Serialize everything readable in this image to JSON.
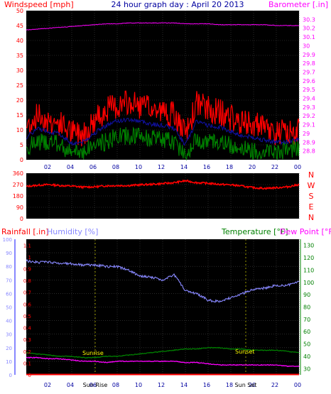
{
  "header": {
    "left_title": "Windspeed [mph]",
    "center_title": "24 hour graph day : April 20 2013",
    "right_title": "Barometer [.in]"
  },
  "colors": {
    "plot_bg": "#000000",
    "grid": "#444444",
    "wind_gust": "#ff0000",
    "wind_avg": "#008000",
    "wind_line": "#1010a0",
    "barometer": "#ff00ff",
    "direction": "#ff0000",
    "humidity": "#8888ff",
    "temperature": "#008000",
    "dewpoint": "#ff00ff",
    "rainfall": "#ff0000",
    "title_blue": "#0000a0",
    "sun_label": "#ffff00",
    "x_tick": "#0000a0"
  },
  "x_ticks": [
    "02",
    "04",
    "06",
    "08",
    "10",
    "12",
    "14",
    "16",
    "18",
    "20",
    "22",
    "00"
  ],
  "panel_wind": {
    "left_ticks": [
      "0",
      "5",
      "10",
      "15",
      "20",
      "25",
      "30",
      "35",
      "40",
      "45",
      "50"
    ],
    "right_ticks": [
      "28.8",
      "28.9",
      "29",
      "29.1",
      "29.2",
      "29.3",
      "29.4",
      "29.5",
      "29.6",
      "29.7",
      "29.8",
      "29.9",
      "30",
      "30.1",
      "30.2",
      "30.3"
    ]
  },
  "panel_direction": {
    "left_ticks": [
      "0",
      "90",
      "180",
      "270",
      "360"
    ],
    "compass": [
      "N",
      "W",
      "S",
      "E",
      "N"
    ]
  },
  "panel_weather": {
    "rain_label": "Rainfall [.in]",
    "humidity_label": "Humidity [%]",
    "temp_label": "Temperature [°F]",
    "dew_label": "Dew Point [°F]",
    "rain_ticks": [
      "0",
      "0.1",
      "0.2",
      "0.3",
      "0.4",
      "0.5",
      "0.6",
      "0.7",
      "0.8",
      "0.9",
      "1",
      "1.1"
    ],
    "humidity_ticks": [
      "0",
      "10",
      "20",
      "30",
      "40",
      "50",
      "60",
      "70",
      "80",
      "90",
      "100"
    ],
    "temp_ticks": [
      "30",
      "40",
      "50",
      "60",
      "70",
      "80",
      "90",
      "100",
      "110",
      "120",
      "130"
    ],
    "sunrise_tag": "Sunrise",
    "sunset_tag": "Sunset",
    "sunrise_label": "Sun Rise",
    "sunset_label": "Sun Set"
  },
  "chart_data": [
    {
      "type": "line",
      "title": "24 hour graph day : April 20 2013",
      "x": [
        0,
        1,
        2,
        3,
        4,
        5,
        6,
        7,
        8,
        9,
        10,
        11,
        12,
        13,
        14,
        15,
        16,
        17,
        18,
        19,
        20,
        21,
        22,
        23,
        24
      ],
      "series": [
        {
          "name": "Windspeed [mph] gust",
          "values": [
            11,
            15,
            13,
            12,
            9,
            9,
            13,
            17,
            18,
            19,
            18,
            17,
            16,
            15,
            8,
            19,
            17,
            16,
            14,
            12,
            12,
            10,
            9,
            9,
            10
          ]
        },
        {
          "name": "Windspeed [mph] avg",
          "values": [
            4,
            6,
            6,
            5,
            2,
            3,
            5,
            6,
            8,
            8,
            8,
            7,
            7,
            6,
            2,
            7,
            6,
            6,
            5,
            4,
            3,
            3,
            3,
            3,
            4
          ]
        },
        {
          "name": "Barometer [.in]",
          "values": [
            30.18,
            30.19,
            30.2,
            30.21,
            30.22,
            30.23,
            30.24,
            30.25,
            30.25,
            30.26,
            30.26,
            30.26,
            30.26,
            30.26,
            30.25,
            30.25,
            30.25,
            30.24,
            30.24,
            30.24,
            30.24,
            30.24,
            30.23,
            30.23,
            30.23
          ]
        }
      ],
      "ylim": [
        0,
        50
      ],
      "y2lim": [
        28.7,
        30.4
      ]
    },
    {
      "type": "line",
      "x": [
        0,
        1,
        2,
        3,
        4,
        5,
        6,
        7,
        8,
        9,
        10,
        11,
        12,
        13,
        14,
        15,
        16,
        17,
        18,
        19,
        20,
        21,
        22,
        23,
        24
      ],
      "series": [
        {
          "name": "Wind direction",
          "values": [
            255,
            265,
            270,
            262,
            258,
            250,
            252,
            260,
            262,
            262,
            268,
            272,
            278,
            285,
            300,
            285,
            280,
            272,
            268,
            258,
            245,
            240,
            245,
            252,
            270
          ]
        }
      ],
      "ylim": [
        0,
        360
      ]
    },
    {
      "type": "line",
      "x": [
        0,
        1,
        2,
        3,
        4,
        5,
        6,
        7,
        8,
        9,
        10,
        11,
        12,
        13,
        14,
        15,
        16,
        17,
        18,
        19,
        20,
        21,
        22,
        23,
        24
      ],
      "series": [
        {
          "name": "Humidity [%]",
          "values": [
            84,
            83,
            83,
            82,
            82,
            81,
            81,
            80,
            80,
            77,
            73,
            72,
            70,
            74,
            62,
            60,
            55,
            54,
            57,
            60,
            63,
            64,
            66,
            66,
            69
          ]
        },
        {
          "name": "Temperature [°F]",
          "values": [
            43,
            42,
            41,
            40,
            40,
            39,
            39,
            40,
            40,
            41,
            42,
            43,
            44,
            45,
            46,
            46,
            47,
            47,
            46,
            46,
            45,
            45,
            45,
            44,
            43
          ]
        },
        {
          "name": "Dew Point [°F]",
          "values": [
            39,
            39,
            38,
            38,
            37,
            36,
            36,
            35,
            36,
            36,
            36,
            36,
            36,
            36,
            35,
            35,
            34,
            33,
            33,
            33,
            33,
            33,
            33,
            32,
            32
          ]
        },
        {
          "name": "Rainfall [.in]",
          "values": [
            0,
            0,
            0,
            0,
            0,
            0,
            0,
            0,
            0,
            0,
            0,
            0,
            0,
            0,
            0,
            0,
            0,
            0,
            0,
            0,
            0,
            0,
            0,
            0,
            0
          ]
        }
      ],
      "ylim": [
        0,
        100
      ],
      "y2lim": [
        25,
        135
      ]
    }
  ]
}
